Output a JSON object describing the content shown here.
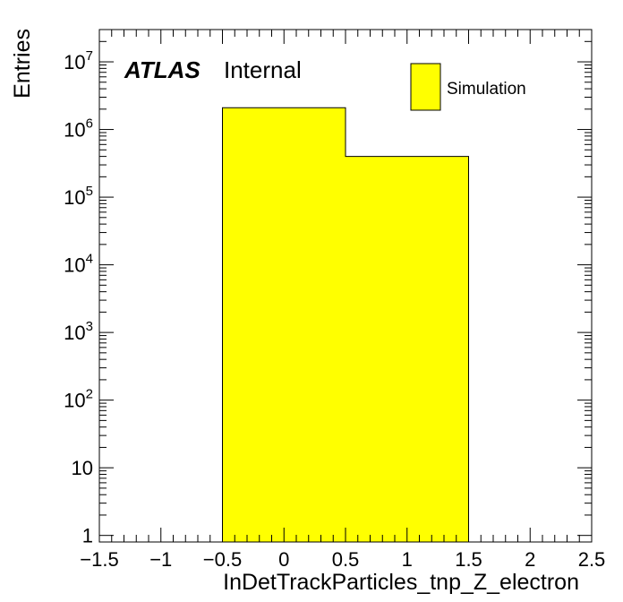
{
  "chart_data": {
    "type": "bar",
    "histogram": true,
    "xlabel": "InDetTrackParticles_tnp_Z_electron",
    "ylabel": "Entries",
    "xlim": [
      -1.5,
      2.5
    ],
    "ylim": [
      0.8,
      30000000
    ],
    "yscale": "log",
    "x_ticks": [
      {
        "value": -1.5,
        "label": "−1.5"
      },
      {
        "value": -1,
        "label": "−1"
      },
      {
        "value": -0.5,
        "label": "−0.5"
      },
      {
        "value": 0,
        "label": "0"
      },
      {
        "value": 0.5,
        "label": "0.5"
      },
      {
        "value": 1,
        "label": "1"
      },
      {
        "value": 1.5,
        "label": "1.5"
      },
      {
        "value": 2,
        "label": "2"
      },
      {
        "value": 2.5,
        "label": "2.5"
      }
    ],
    "y_ticks": [
      {
        "value": 1,
        "base": "1",
        "exp": ""
      },
      {
        "value": 10,
        "base": "10",
        "exp": ""
      },
      {
        "value": 100,
        "base": "10",
        "exp": "2"
      },
      {
        "value": 1000,
        "base": "10",
        "exp": "3"
      },
      {
        "value": 10000,
        "base": "10",
        "exp": "4"
      },
      {
        "value": 100000,
        "base": "10",
        "exp": "5"
      },
      {
        "value": 1000000,
        "base": "10",
        "exp": "6"
      },
      {
        "value": 10000000,
        "base": "10",
        "exp": "7"
      }
    ],
    "bins": [
      {
        "low": -0.5,
        "high": 0.5,
        "value": 2100000
      },
      {
        "low": 0.5,
        "high": 1.5,
        "value": 400000
      }
    ],
    "fill_color": "#ffff00",
    "edge_color": "#000000",
    "legend": {
      "label": "Simulation",
      "placement": "top-right"
    },
    "annotation": {
      "bold": "ATLAS",
      "normal": "Internal"
    },
    "grid": false
  }
}
